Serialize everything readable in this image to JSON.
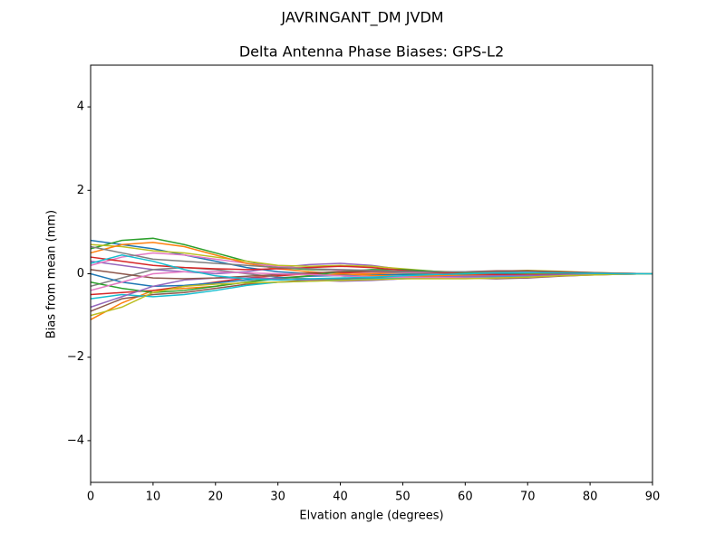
{
  "chart_data": {
    "type": "line",
    "suptitle": "JAVRINGANT_DM   JVDM",
    "title": "Delta Antenna Phase Biases: GPS-L2",
    "xlabel": "Elvation angle (degrees)",
    "ylabel": "Bias from mean (mm)",
    "xlim": [
      0,
      90
    ],
    "ylim": [
      -5,
      5
    ],
    "xticks": [
      0,
      10,
      20,
      30,
      40,
      50,
      60,
      70,
      80,
      90
    ],
    "yticks": [
      {
        "value": -4,
        "label": "−4"
      },
      {
        "value": -2,
        "label": "−2"
      },
      0,
      2,
      4
    ],
    "grid": false,
    "x": [
      0,
      5,
      10,
      15,
      20,
      25,
      30,
      35,
      40,
      45,
      50,
      55,
      60,
      65,
      70,
      75,
      80,
      85,
      90
    ],
    "series": [
      {
        "color": "#1f77b4",
        "values": [
          0.8,
          0.7,
          0.6,
          0.45,
          0.3,
          0.15,
          0.05,
          0.0,
          -0.05,
          -0.08,
          -0.1,
          -0.08,
          -0.05,
          -0.02,
          0.0,
          0.02,
          0.02,
          0.01,
          0
        ]
      },
      {
        "color": "#ff7f0e",
        "values": [
          -1.1,
          -0.7,
          -0.4,
          -0.35,
          -0.3,
          -0.2,
          -0.1,
          -0.05,
          -0.02,
          0.0,
          0.02,
          0.03,
          0.03,
          0.02,
          0.01,
          0.0,
          0,
          0,
          0
        ]
      },
      {
        "color": "#2ca02c",
        "values": [
          0.6,
          0.8,
          0.85,
          0.7,
          0.5,
          0.3,
          0.15,
          0.1,
          0.08,
          0.05,
          0.02,
          0.0,
          -0.02,
          -0.03,
          -0.03,
          -0.02,
          -0.01,
          0,
          0
        ]
      },
      {
        "color": "#d62728",
        "values": [
          -0.5,
          -0.45,
          -0.4,
          -0.3,
          -0.2,
          -0.1,
          -0.05,
          0.0,
          0.02,
          0.04,
          0.05,
          0.05,
          0.05,
          0.06,
          0.05,
          0.04,
          0.02,
          0.01,
          0
        ]
      },
      {
        "color": "#9467bd",
        "values": [
          0.3,
          0.2,
          0.1,
          0.05,
          0.0,
          0.05,
          0.15,
          0.22,
          0.25,
          0.2,
          0.1,
          0.05,
          0.02,
          0.0,
          -0.02,
          -0.02,
          -0.01,
          0,
          0
        ]
      },
      {
        "color": "#8c564b",
        "values": [
          -0.9,
          -0.6,
          -0.5,
          -0.45,
          -0.35,
          -0.25,
          -0.2,
          -0.15,
          -0.12,
          -0.1,
          -0.08,
          -0.08,
          -0.1,
          -0.12,
          -0.1,
          -0.06,
          -0.03,
          -0.01,
          0
        ]
      },
      {
        "color": "#e377c2",
        "values": [
          0.2,
          0.4,
          0.5,
          0.45,
          0.35,
          0.25,
          0.18,
          0.12,
          0.08,
          0.05,
          0.03,
          0.02,
          0.02,
          0.03,
          0.04,
          0.03,
          0.02,
          0.01,
          0
        ]
      },
      {
        "color": "#7f7f7f",
        "values": [
          -0.3,
          -0.1,
          0.1,
          0.15,
          0.1,
          0.0,
          -0.08,
          -0.12,
          -0.15,
          -0.15,
          -0.12,
          -0.1,
          -0.08,
          -0.06,
          -0.05,
          -0.04,
          -0.02,
          -0.01,
          0
        ]
      },
      {
        "color": "#bcbd22",
        "values": [
          0.7,
          0.65,
          0.55,
          0.5,
          0.4,
          0.3,
          0.2,
          0.18,
          0.2,
          0.18,
          0.12,
          0.06,
          0.04,
          0.06,
          0.08,
          0.06,
          0.03,
          0.01,
          0
        ]
      },
      {
        "color": "#17becf",
        "values": [
          -0.6,
          -0.5,
          -0.55,
          -0.5,
          -0.4,
          -0.28,
          -0.2,
          -0.18,
          -0.15,
          -0.12,
          -0.1,
          -0.1,
          -0.1,
          -0.08,
          -0.06,
          -0.04,
          -0.02,
          -0.01,
          0
        ]
      },
      {
        "color": "#1f77b4",
        "values": [
          0.0,
          -0.2,
          -0.3,
          -0.28,
          -0.22,
          -0.15,
          -0.1,
          -0.06,
          -0.04,
          -0.03,
          -0.02,
          -0.02,
          -0.01,
          0.0,
          0.0,
          0.0,
          0,
          0,
          0
        ]
      },
      {
        "color": "#ff7f0e",
        "values": [
          0.5,
          0.7,
          0.75,
          0.65,
          0.45,
          0.25,
          0.12,
          0.05,
          0.0,
          -0.04,
          -0.06,
          -0.05,
          -0.04,
          -0.03,
          -0.02,
          -0.01,
          0,
          0,
          0
        ]
      },
      {
        "color": "#2ca02c",
        "values": [
          -0.2,
          -0.35,
          -0.45,
          -0.4,
          -0.3,
          -0.2,
          -0.12,
          -0.05,
          0.05,
          0.1,
          0.1,
          0.06,
          0.03,
          0.02,
          0.02,
          0.01,
          0.01,
          0,
          0
        ]
      },
      {
        "color": "#d62728",
        "values": [
          0.4,
          0.3,
          0.2,
          0.15,
          0.12,
          0.1,
          0.12,
          0.15,
          0.18,
          0.15,
          0.08,
          0.03,
          0.0,
          -0.02,
          -0.03,
          -0.02,
          -0.01,
          0,
          0
        ]
      },
      {
        "color": "#9467bd",
        "values": [
          -0.8,
          -0.55,
          -0.3,
          -0.15,
          -0.1,
          -0.1,
          -0.12,
          -0.15,
          -0.18,
          -0.16,
          -0.12,
          -0.08,
          -0.06,
          -0.05,
          -0.04,
          -0.03,
          -0.02,
          -0.01,
          0
        ]
      },
      {
        "color": "#8c564b",
        "values": [
          0.1,
          0.0,
          -0.1,
          -0.12,
          -0.1,
          -0.06,
          -0.02,
          0.02,
          0.05,
          0.06,
          0.05,
          0.04,
          0.05,
          0.07,
          0.07,
          0.05,
          0.03,
          0.01,
          0
        ]
      },
      {
        "color": "#e377c2",
        "values": [
          -0.4,
          -0.2,
          0.0,
          0.05,
          0.05,
          0.02,
          0.0,
          -0.02,
          -0.05,
          -0.07,
          -0.08,
          -0.09,
          -0.1,
          -0.1,
          -0.08,
          -0.05,
          -0.03,
          -0.01,
          0
        ]
      },
      {
        "color": "#7f7f7f",
        "values": [
          0.65,
          0.5,
          0.35,
          0.3,
          0.25,
          0.2,
          0.15,
          0.12,
          0.1,
          0.08,
          0.06,
          0.05,
          0.05,
          0.04,
          0.03,
          0.02,
          0.01,
          0,
          0
        ]
      },
      {
        "color": "#bcbd22",
        "values": [
          -1.0,
          -0.8,
          -0.45,
          -0.3,
          -0.25,
          -0.22,
          -0.2,
          -0.18,
          -0.16,
          -0.14,
          -0.12,
          -0.12,
          -0.12,
          -0.1,
          -0.08,
          -0.05,
          -0.03,
          -0.01,
          0
        ]
      },
      {
        "color": "#17becf",
        "values": [
          0.25,
          0.45,
          0.3,
          0.1,
          -0.05,
          -0.12,
          -0.15,
          -0.12,
          -0.1,
          -0.08,
          -0.05,
          -0.02,
          0.0,
          0.02,
          0.03,
          0.02,
          0.01,
          0,
          0
        ]
      }
    ]
  }
}
